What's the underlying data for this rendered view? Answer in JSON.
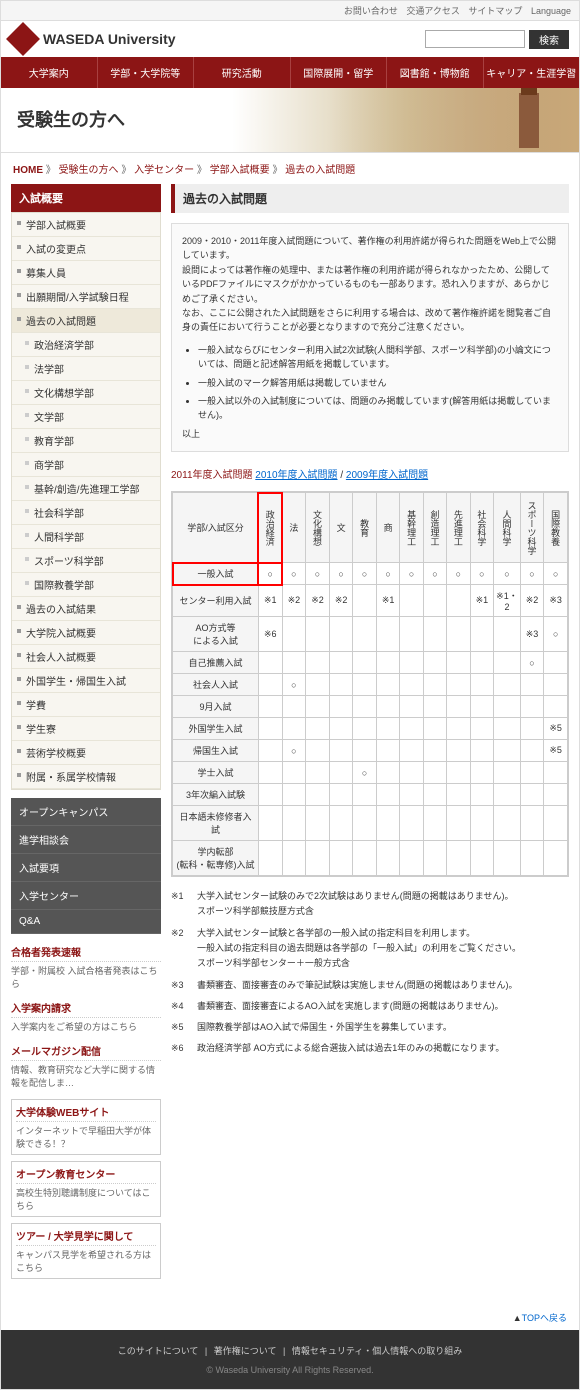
{
  "topbar": [
    "お問い合わせ",
    "交通アクセス",
    "サイトマップ",
    "Language"
  ],
  "site_title": "WASEDA University",
  "search_btn": "検索",
  "gnav": [
    "大学案内",
    "学部・大学院等",
    "研究活動",
    "国際展開・留学",
    "図書館・博物館",
    "キャリア・生涯学習"
  ],
  "hero_title": "受験生の方へ",
  "breadcrumb": {
    "home": "HOME",
    "items": [
      "受験生の方へ",
      "入学センター",
      "学部入試概要",
      "過去の入試問題"
    ]
  },
  "side_header": "入試概要",
  "side_items": [
    {
      "label": "学部入試概要",
      "sub": false
    },
    {
      "label": "入試の変更点",
      "sub": false
    },
    {
      "label": "募集人員",
      "sub": false
    },
    {
      "label": "出願期間/入学試験日程",
      "sub": false
    },
    {
      "label": "過去の入試問題",
      "sub": false,
      "selected": true
    },
    {
      "label": "政治経済学部",
      "sub": true
    },
    {
      "label": "法学部",
      "sub": true
    },
    {
      "label": "文化構想学部",
      "sub": true
    },
    {
      "label": "文学部",
      "sub": true
    },
    {
      "label": "教育学部",
      "sub": true
    },
    {
      "label": "商学部",
      "sub": true
    },
    {
      "label": "基幹/創造/先進理工学部",
      "sub": true
    },
    {
      "label": "社会科学部",
      "sub": true
    },
    {
      "label": "人間科学部",
      "sub": true
    },
    {
      "label": "スポーツ科学部",
      "sub": true
    },
    {
      "label": "国際教養学部",
      "sub": true
    },
    {
      "label": "過去の入試結果",
      "sub": false
    },
    {
      "label": "大学院入試概要",
      "sub": false
    },
    {
      "label": "社会人入試概要",
      "sub": false
    },
    {
      "label": "外国学生・帰国生入試",
      "sub": false
    },
    {
      "label": "学費",
      "sub": false
    },
    {
      "label": "学生寮",
      "sub": false
    },
    {
      "label": "芸術学校概要",
      "sub": false
    },
    {
      "label": "附属・系属学校情報",
      "sub": false
    }
  ],
  "side_dark": [
    "オープンキャンパス",
    "進学相談会",
    "入試要項",
    "入学センター",
    "Q&A"
  ],
  "side_links": [
    {
      "t": "合格者発表速報",
      "d": "学部・附属校 入試合格者発表はこちら"
    },
    {
      "t": "入学案内請求",
      "d": "入学案内をご希望の方はこちら"
    },
    {
      "t": "メールマガジン配信",
      "d": "情報、教育研究など大学に関する情報を配信しま…"
    },
    {
      "t": "大学体験WEBサイト",
      "d": "インターネットで早稲田大学が体験できる！？",
      "boxed": true
    },
    {
      "t": "オープン教育センター",
      "d": "高校生特別聴講制度についてはこちら",
      "boxed": true
    },
    {
      "t": "ツアー / 大学見学に関して",
      "d": "キャンパス見学を希望される方はこちら",
      "boxed": true
    }
  ],
  "main_header": "過去の入試問題",
  "info_text": "2009・2010・2011年度入試問題について、著作権の利用許諾が得られた問題をWeb上で公開しています。\n設問によっては著作権の処理中、または著作権の利用許諾が得られなかったため、公開しているPDFファイルにマスクがかかっているものも一部あります。恐れ入りますが、あらかじめご了承ください。\nなお、ここに公開された入試問題をさらに利用する場合は、改めて著作権許諾を閲覧者ご自身の責任において行うことが必要となりますので充分ご注意ください。",
  "info_bullets": [
    "一般入試ならびにセンター利用入試2次試験(人間科学部、スポーツ科学部)の小論文については、問題と記述解答用紙を掲載しています。",
    "一般入試のマーク解答用紙は掲載していません",
    "一般入試以外の入試制度については、問題のみ掲載しています(解答用紙は掲載していません)。"
  ],
  "info_tail": "以上",
  "year_current": "2011年度入試問題",
  "year_links": [
    "2010年度入試問題",
    "2009年度入試問題"
  ],
  "columns": [
    "政治経済",
    "法",
    "文化構想",
    "文",
    "教育",
    "商",
    "基幹理工",
    "創造理工",
    "先進理工",
    "社会科学",
    "人間科学",
    "スポーツ科学",
    "国際教養"
  ],
  "row_header": "学部/入試区分",
  "rows": [
    {
      "h": "一般入試",
      "c": [
        "○",
        "○",
        "○",
        "○",
        "○",
        "○",
        "○",
        "○",
        "○",
        "○",
        "○",
        "○",
        "○"
      ],
      "hl": true
    },
    {
      "h": "センター利用入試",
      "c": [
        "※1",
        "※2",
        "※2",
        "※2",
        "",
        "※1",
        "",
        "",
        "",
        "※1",
        "※1・2",
        "※2",
        "※3"
      ]
    },
    {
      "h": "AO方式等\nによる入試",
      "c": [
        "※6",
        "",
        "",
        "",
        "",
        "",
        "",
        "",
        "",
        "",
        "",
        "※3",
        "○"
      ]
    },
    {
      "h": "自己推薦入試",
      "c": [
        "",
        "",
        "",
        "",
        "",
        "",
        "",
        "",
        "",
        "",
        "",
        "○",
        ""
      ]
    },
    {
      "h": "社会人入試",
      "c": [
        "",
        "○",
        "",
        "",
        "",
        "",
        "",
        "",
        "",
        "",
        "",
        "",
        ""
      ]
    },
    {
      "h": "9月入試",
      "c": [
        "",
        "",
        "",
        "",
        "",
        "",
        "",
        "",
        "",
        "",
        "",
        "",
        ""
      ]
    },
    {
      "h": "外国学生入試",
      "c": [
        "",
        "",
        "",
        "",
        "",
        "",
        "",
        "",
        "",
        "",
        "",
        "",
        "※5"
      ]
    },
    {
      "h": "帰国生入試",
      "c": [
        "",
        "○",
        "",
        "",
        "",
        "",
        "",
        "",
        "",
        "",
        "",
        "",
        "※5"
      ]
    },
    {
      "h": "学士入試",
      "c": [
        "",
        "",
        "",
        "",
        "○",
        "",
        "",
        "",
        "",
        "",
        "",
        "",
        ""
      ]
    },
    {
      "h": "3年次編入試験",
      "c": [
        "",
        "",
        "",
        "",
        "",
        "",
        "",
        "",
        "",
        "",
        "",
        "",
        ""
      ]
    },
    {
      "h": "日本語未修修者入試",
      "c": [
        "",
        "",
        "",
        "",
        "",
        "",
        "",
        "",
        "",
        "",
        "",
        "",
        ""
      ]
    },
    {
      "h": "学内転部\n(転科・転専修)入試",
      "c": [
        "",
        "",
        "",
        "",
        "",
        "",
        "",
        "",
        "",
        "",
        "",
        "",
        ""
      ]
    }
  ],
  "notes": [
    {
      "n": "※1",
      "t": "大学入試センター試験のみで2次試験はありません(問題の掲載はありません)。\nスポーツ科学部競技歴方式含"
    },
    {
      "n": "※2",
      "t": "大学入試センター試験と各学部の一般入試の指定科目を利用します。\n一般入試の指定科目の過去問題は各学部の「一般入試」の利用をご覧ください。\nスポーツ科学部センター＋一般方式含"
    },
    {
      "n": "※3",
      "t": "書類審査、面接審査のみで筆記試験は実施しません(問題の掲載はありません)。"
    },
    {
      "n": "※4",
      "t": "書類審査、面接審査によるAO入試を実施します(問題の掲載はありません)。"
    },
    {
      "n": "※5",
      "t": "国際教養学部はAO入試で帰国生・外国学生を募集しています。"
    },
    {
      "n": "※6",
      "t": "政治経済学部 AO方式による総合選抜入試は過去1年のみの掲載になります。"
    }
  ],
  "toplink": "TOPへ戻る",
  "footer_links": [
    "このサイトについて",
    "著作権について",
    "情報セキュリティ・個人情報への取り組み"
  ],
  "copyright": "© Waseda University All Rights Reserved."
}
